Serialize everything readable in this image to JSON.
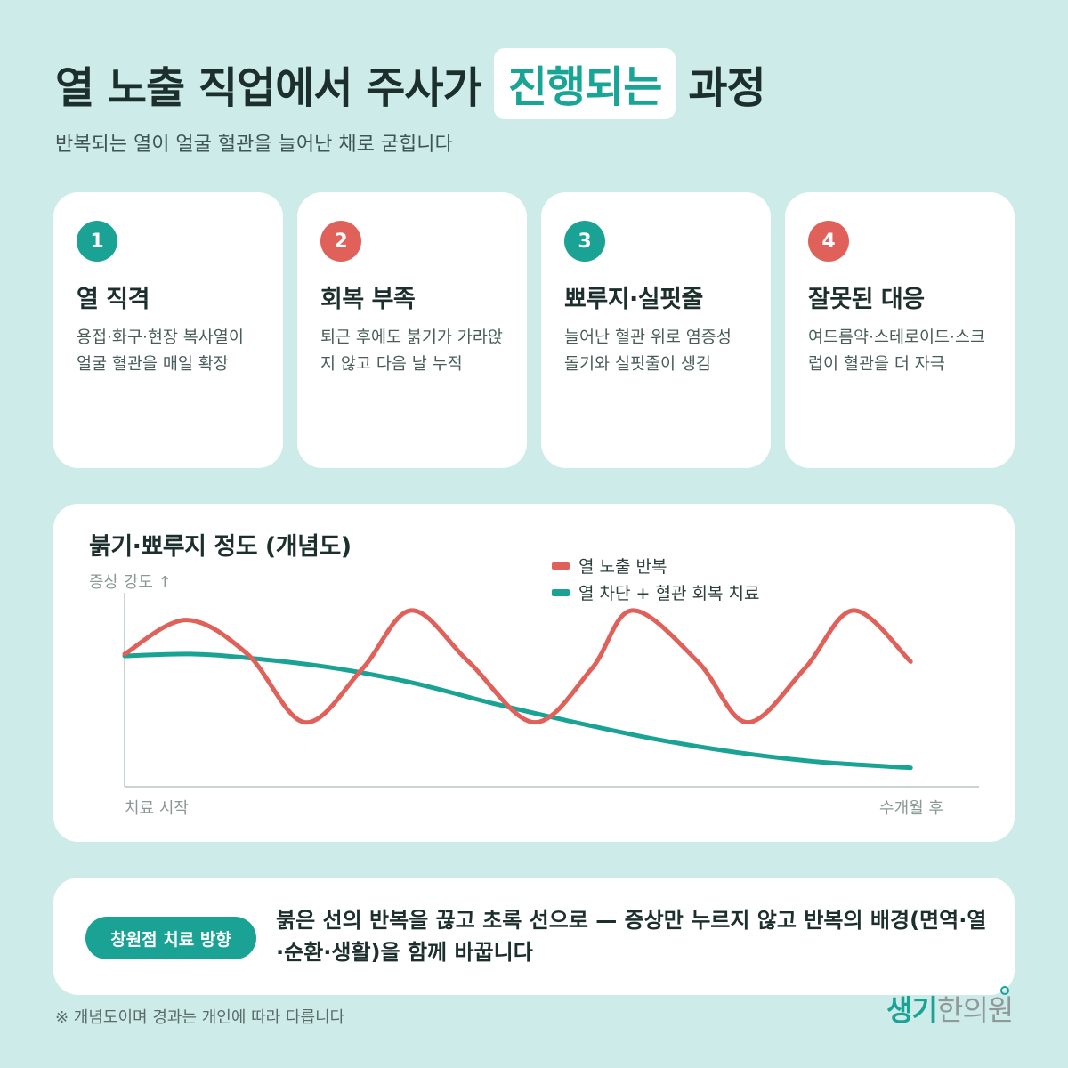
{
  "header": {
    "title_prefix": "열 노출 직업에서 주사가",
    "title_highlight": "진행되는",
    "title_suffix": "과정",
    "subtitle": "반복되는 열이 얼굴 혈관을 늘어난 채로 굳힙니다"
  },
  "steps": [
    {
      "num": "1",
      "title": "열 직격",
      "desc": "용접·화구·현장 복사열이 얼굴 혈관을 매일 확장",
      "color": "#1aa395"
    },
    {
      "num": "2",
      "title": "회복 부족",
      "desc": "퇴근 후에도 붉기가 가라앉지 않고 다음 날 누적",
      "color": "#e0605a"
    },
    {
      "num": "3",
      "title": "뾰루지·실핏줄",
      "desc": "늘어난 혈관 위로 염증성 돌기와 실핏줄이 생김",
      "color": "#1aa395"
    },
    {
      "num": "4",
      "title": "잘못된 대응",
      "desc": "여드름약·스테로이드·스크럽이 혈관을 더 자극",
      "color": "#e0605a"
    }
  ],
  "chart_data": {
    "type": "line",
    "title": "붉기·뾰루지 정도 (개념도)",
    "ylabel": "증상 강도 ↑",
    "x_start_label": "치료 시작",
    "x_end_label": "수개월 후",
    "ylim": [
      0,
      100
    ],
    "xlim": [
      0,
      100
    ],
    "legend_position": "top-right",
    "series": [
      {
        "name": "열 노출 반복",
        "color": "#e0605a",
        "points": [
          [
            0,
            70
          ],
          [
            7.5,
            88
          ],
          [
            15,
            70
          ],
          [
            22,
            34
          ],
          [
            29,
            62
          ],
          [
            35,
            93
          ],
          [
            42,
            66
          ],
          [
            50,
            34
          ],
          [
            57,
            62
          ],
          [
            62,
            93
          ],
          [
            70,
            66
          ],
          [
            76,
            34
          ],
          [
            83,
            62
          ],
          [
            89,
            93
          ],
          [
            96,
            66
          ]
        ]
      },
      {
        "name": "열 차단 + 혈관 회복 치료",
        "color": "#1aa395",
        "points": [
          [
            0,
            69
          ],
          [
            8,
            70
          ],
          [
            15,
            68
          ],
          [
            25,
            63
          ],
          [
            35,
            55
          ],
          [
            45,
            44
          ],
          [
            55,
            34
          ],
          [
            65,
            25
          ],
          [
            75,
            18
          ],
          [
            85,
            13
          ],
          [
            96,
            10
          ]
        ]
      }
    ]
  },
  "bottom": {
    "pill": "창원점 치료 방향",
    "text": "붉은 선의 반복을 끊고 초록 선으로 — 증상만 누르지 않고 반복의 배경(면역·열·순환·생활)을 함께 바꿉니다"
  },
  "footnote": "※ 개념도이며 경과는 개인에 따라 다릅니다",
  "logo": {
    "part1": "생기",
    "part2": "한의원"
  }
}
